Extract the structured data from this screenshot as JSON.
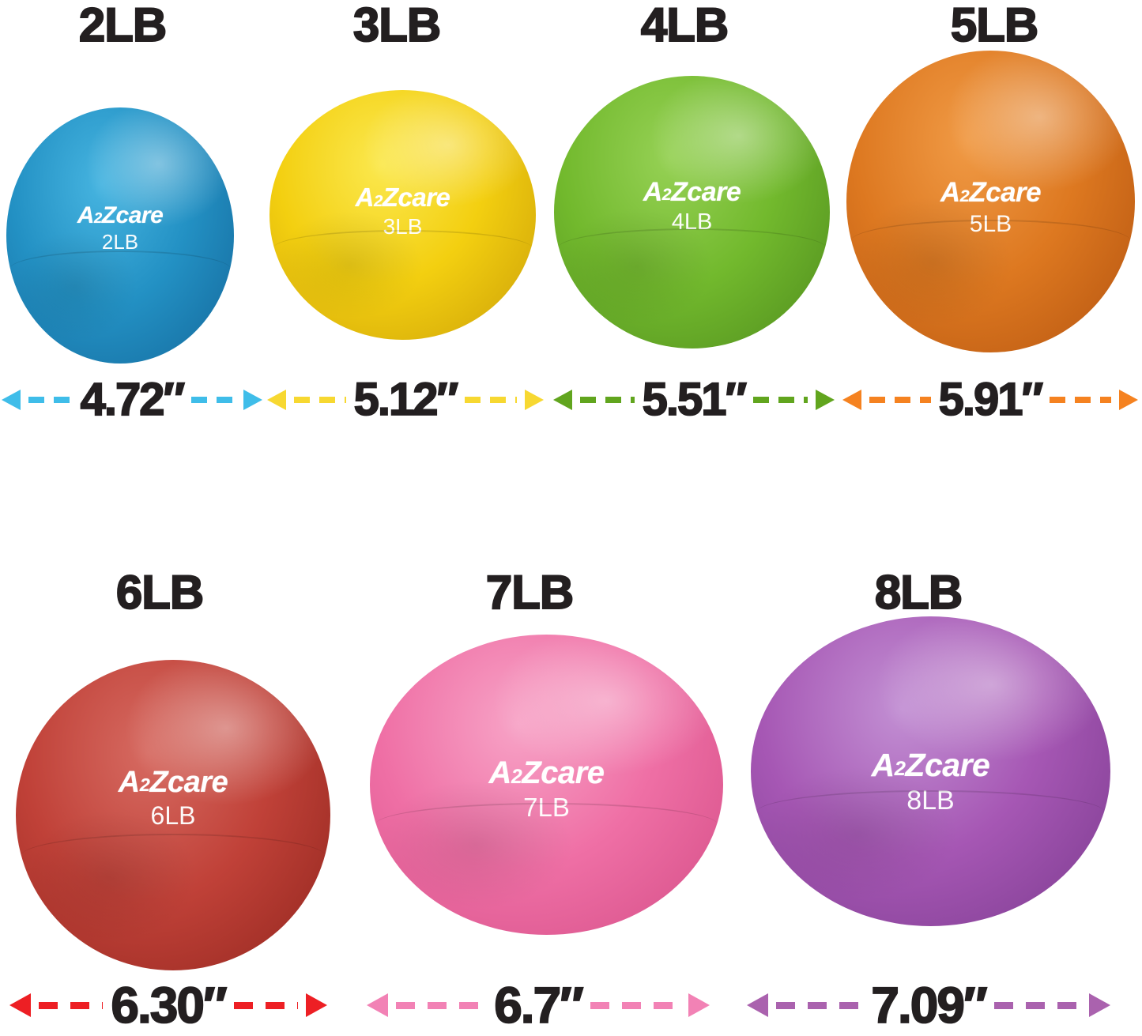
{
  "image_title": "A2Zcare toning ball size chart",
  "balls": [
    {
      "header": "2LB",
      "brand": "A2Zcare",
      "weight_label": "2LB",
      "diameter": "4.72″",
      "colors": {
        "light": "#46b4e0",
        "main": "#2391c4",
        "dark": "#14689b",
        "arrow": "#3fbde9"
      }
    },
    {
      "header": "3LB",
      "brand": "A2Zcare",
      "weight_label": "3LB",
      "diameter": "5.12″",
      "colors": {
        "light": "#fbe84e",
        "main": "#f3cf10",
        "dark": "#cb9f08",
        "arrow": "#f7d831"
      }
    },
    {
      "header": "4LB",
      "brand": "A2Zcare",
      "weight_label": "4LB",
      "diameter": "5.51″",
      "colors": {
        "light": "#96d155",
        "main": "#72b92d",
        "dark": "#4f8c1d",
        "arrow": "#61a51e"
      }
    },
    {
      "header": "5LB",
      "brand": "A2Zcare",
      "weight_label": "5LB",
      "diameter": "5.91″",
      "colors": {
        "light": "#f09a45",
        "main": "#dd7820",
        "dark": "#b45410",
        "arrow": "#f58220"
      }
    },
    {
      "header": "6LB",
      "brand": "A2Zcare",
      "weight_label": "6LB",
      "diameter": "6.30″",
      "colors": {
        "light": "#d66a61",
        "main": "#c04138",
        "dark": "#92261e",
        "arrow": "#ed1f24"
      }
    },
    {
      "header": "7LB",
      "brand": "A2Zcare",
      "weight_label": "7LB",
      "diameter": "6.7″",
      "colors": {
        "light": "#f7a3c6",
        "main": "#ef6fa5",
        "dark": "#d44e87",
        "arrow": "#f282b5"
      }
    },
    {
      "header": "8LB",
      "brand": "A2Zcare",
      "weight_label": "8LB",
      "diameter": "7.09″",
      "colors": {
        "light": "#c28fd3",
        "main": "#a657b4",
        "dark": "#7c3b8f",
        "arrow": "#aa62ae"
      }
    }
  ]
}
